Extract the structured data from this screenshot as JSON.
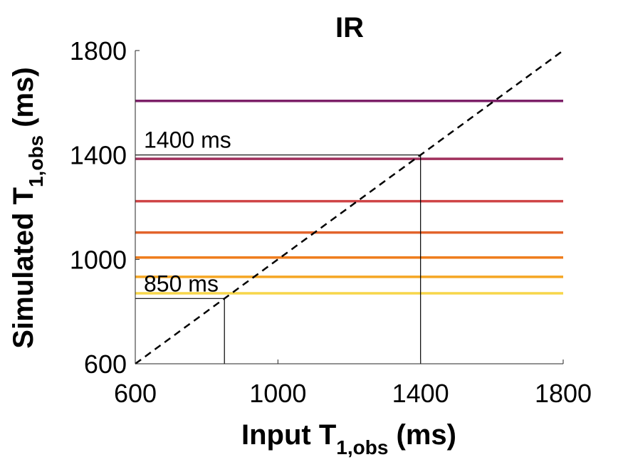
{
  "chart_data": {
    "type": "line",
    "title": "IR",
    "xlabel": {
      "prefix": "Input T",
      "sub": "1,obs",
      "suffix": " (ms)"
    },
    "ylabel": {
      "prefix": "Simulated T",
      "sub": "1,obs",
      "suffix": " (ms)"
    },
    "xlim": [
      600,
      1800
    ],
    "ylim": [
      600,
      1800
    ],
    "xticks": [
      600,
      1000,
      1400,
      1800
    ],
    "yticks": [
      600,
      1000,
      1400,
      1800
    ],
    "xtick_labels": [
      "600",
      "1000",
      "1400",
      "1800"
    ],
    "ytick_labels": [
      "600",
      "1000",
      "1400",
      "1800"
    ],
    "grid": false,
    "identity_line": {
      "style": "dashed",
      "color": "#000000",
      "x": [
        600,
        1800
      ],
      "y": [
        600,
        1800
      ]
    },
    "series": [
      {
        "color": "#f7d64a",
        "x": [
          600,
          1800
        ],
        "values": [
          870,
          870
        ]
      },
      {
        "color": "#f5a623",
        "x": [
          600,
          1800
        ],
        "values": [
          933,
          933
        ]
      },
      {
        "color": "#ef7d1d",
        "x": [
          600,
          1800
        ],
        "values": [
          1007,
          1007
        ]
      },
      {
        "color": "#e2632b",
        "x": [
          600,
          1800
        ],
        "values": [
          1103,
          1103
        ]
      },
      {
        "color": "#cf4446",
        "x": [
          600,
          1800
        ],
        "values": [
          1223,
          1223
        ]
      },
      {
        "color": "#a0305c",
        "x": [
          600,
          1800
        ],
        "values": [
          1385,
          1385
        ]
      },
      {
        "color": "#7d2068",
        "x": [
          600,
          1800
        ],
        "values": [
          1607,
          1607
        ]
      }
    ],
    "annotations": [
      {
        "text": "1400 ms",
        "x": 1400,
        "y": 1400
      },
      {
        "text": "850 ms",
        "x": 850,
        "y": 850
      }
    ]
  }
}
